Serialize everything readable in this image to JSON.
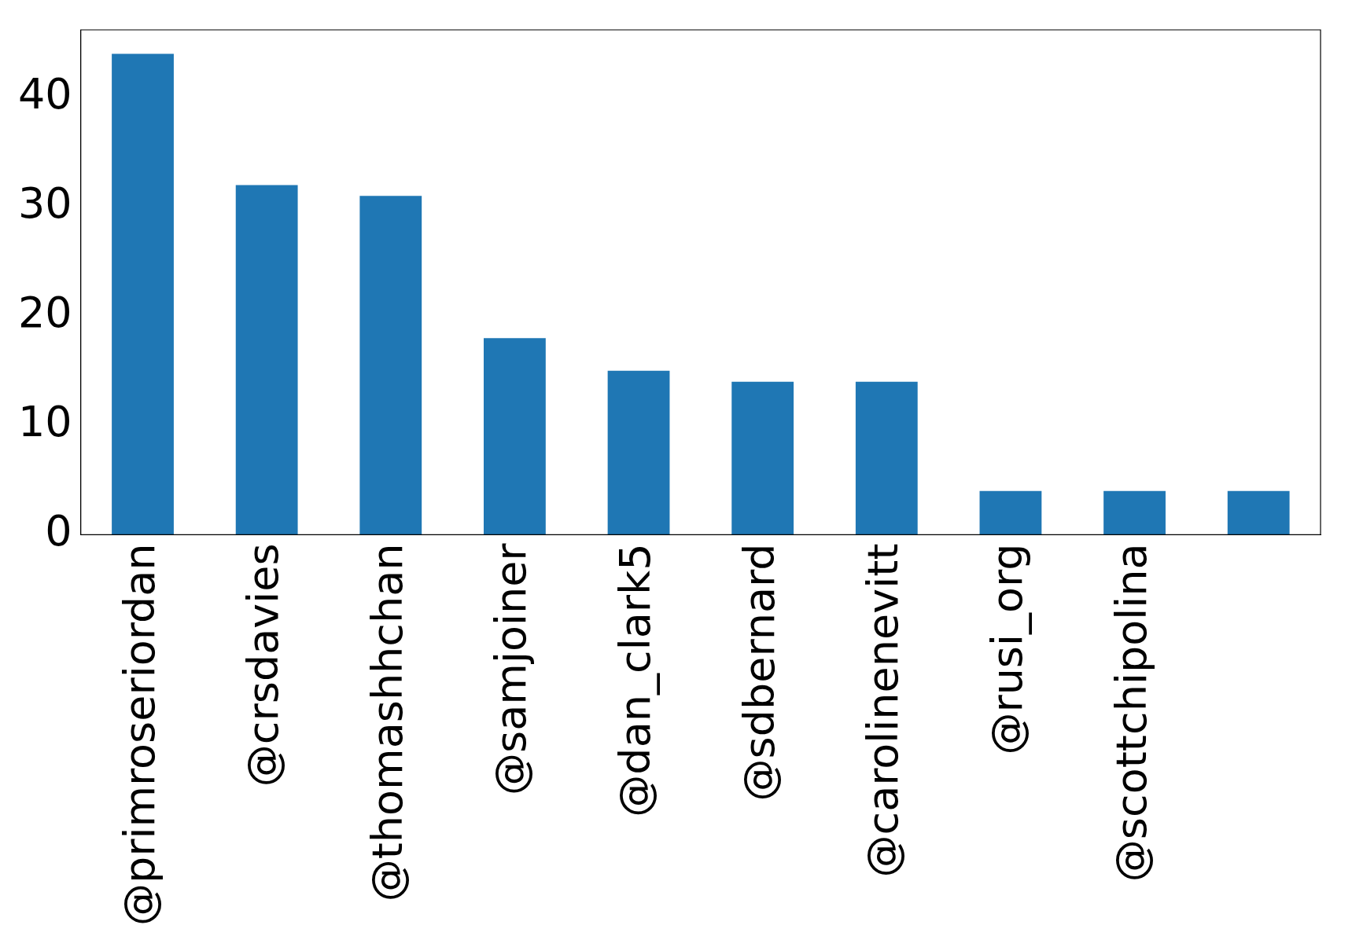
{
  "chart_data": {
    "type": "bar",
    "categories": [
      "@primroseriordan",
      "@crsdavies",
      "@thomashhchan",
      "@samjoiner",
      "@dan_clark5",
      "@sdbernard",
      "@carolinenevitt",
      "@rusi_org",
      "@scottchipolina",
      null
    ],
    "values": [
      44,
      32,
      31,
      18,
      15,
      14,
      14,
      4,
      4,
      4
    ],
    "color": "#1f77b4",
    "ylim": [
      0,
      46.2
    ],
    "yticks": [
      0,
      10,
      20,
      30,
      40
    ],
    "grid": false,
    "legend": false
  }
}
